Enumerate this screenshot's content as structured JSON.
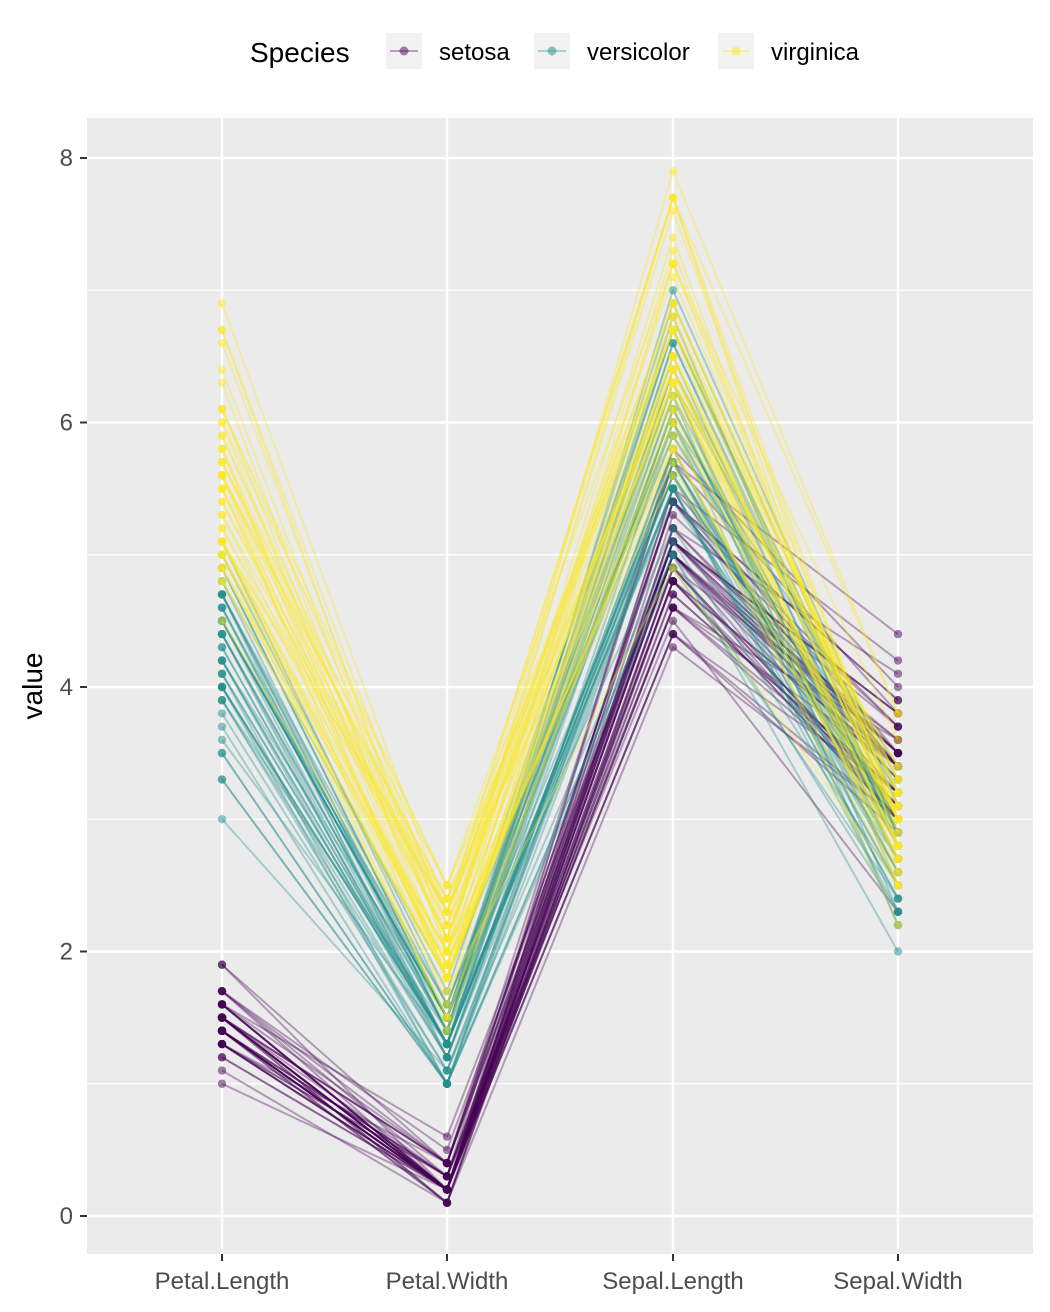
{
  "chart_data": {
    "type": "line",
    "subtype": "parallel-coordinates",
    "title": "",
    "xlabel": "",
    "ylabel": "value",
    "ylim": [
      -0.3,
      8.3
    ],
    "y_ticks": [
      0,
      2,
      4,
      6,
      8
    ],
    "y_minor_ticks": [
      1,
      3,
      5,
      7
    ],
    "grid": true,
    "legend": {
      "title": "Species",
      "position": "top"
    },
    "categories": [
      "Petal.Length",
      "Petal.Width",
      "Sepal.Length",
      "Sepal.Width"
    ],
    "colors": {
      "setosa": "#440154",
      "versicolor": "#21908C",
      "virginica": "#FDE725",
      "panel": "#EBEBEB",
      "grid": "#FFFFFF"
    },
    "series": [
      {
        "name": "setosa",
        "color": "#440154",
        "observations": [
          [
            1.4,
            0.2,
            5.1,
            3.5
          ],
          [
            1.4,
            0.2,
            4.9,
            3.0
          ],
          [
            1.3,
            0.2,
            4.7,
            3.2
          ],
          [
            1.5,
            0.2,
            4.6,
            3.1
          ],
          [
            1.4,
            0.2,
            5.0,
            3.6
          ],
          [
            1.7,
            0.4,
            5.4,
            3.9
          ],
          [
            1.4,
            0.3,
            4.6,
            3.4
          ],
          [
            1.5,
            0.2,
            5.0,
            3.4
          ],
          [
            1.4,
            0.2,
            4.4,
            2.9
          ],
          [
            1.5,
            0.1,
            4.9,
            3.1
          ],
          [
            1.5,
            0.2,
            5.4,
            3.7
          ],
          [
            1.6,
            0.2,
            4.8,
            3.4
          ],
          [
            1.4,
            0.1,
            4.8,
            3.0
          ],
          [
            1.1,
            0.1,
            4.3,
            3.0
          ],
          [
            1.2,
            0.2,
            5.8,
            4.0
          ],
          [
            1.5,
            0.4,
            5.7,
            4.4
          ],
          [
            1.3,
            0.4,
            5.4,
            3.9
          ],
          [
            1.4,
            0.3,
            5.1,
            3.5
          ],
          [
            1.7,
            0.3,
            5.7,
            3.8
          ],
          [
            1.5,
            0.3,
            5.1,
            3.8
          ],
          [
            1.7,
            0.2,
            5.4,
            3.4
          ],
          [
            1.5,
            0.4,
            5.1,
            3.7
          ],
          [
            1.0,
            0.2,
            4.6,
            3.6
          ],
          [
            1.7,
            0.5,
            5.1,
            3.3
          ],
          [
            1.9,
            0.2,
            4.8,
            3.4
          ],
          [
            1.6,
            0.2,
            5.0,
            3.0
          ],
          [
            1.6,
            0.4,
            5.0,
            3.4
          ],
          [
            1.5,
            0.2,
            5.2,
            3.5
          ],
          [
            1.4,
            0.2,
            5.2,
            3.4
          ],
          [
            1.6,
            0.2,
            4.7,
            3.2
          ],
          [
            1.6,
            0.2,
            4.8,
            3.1
          ],
          [
            1.5,
            0.4,
            5.4,
            3.4
          ],
          [
            1.5,
            0.1,
            5.2,
            4.1
          ],
          [
            1.4,
            0.2,
            5.5,
            4.2
          ],
          [
            1.5,
            0.2,
            4.9,
            3.1
          ],
          [
            1.2,
            0.2,
            5.0,
            3.2
          ],
          [
            1.3,
            0.2,
            5.5,
            3.5
          ],
          [
            1.4,
            0.1,
            4.9,
            3.6
          ],
          [
            1.3,
            0.2,
            4.4,
            3.0
          ],
          [
            1.5,
            0.2,
            5.1,
            3.4
          ],
          [
            1.3,
            0.3,
            5.0,
            3.5
          ],
          [
            1.3,
            0.3,
            4.5,
            2.3
          ],
          [
            1.3,
            0.2,
            4.4,
            3.2
          ],
          [
            1.6,
            0.6,
            5.0,
            3.5
          ],
          [
            1.9,
            0.4,
            5.1,
            3.8
          ],
          [
            1.4,
            0.3,
            4.8,
            3.0
          ],
          [
            1.6,
            0.2,
            5.1,
            3.8
          ],
          [
            1.4,
            0.2,
            4.6,
            3.2
          ],
          [
            1.5,
            0.2,
            5.3,
            3.7
          ],
          [
            1.4,
            0.2,
            5.0,
            3.3
          ]
        ]
      },
      {
        "name": "versicolor",
        "color": "#21908C",
        "observations": [
          [
            4.7,
            1.4,
            7.0,
            3.2
          ],
          [
            4.5,
            1.5,
            6.4,
            3.2
          ],
          [
            4.9,
            1.5,
            6.9,
            3.1
          ],
          [
            4.0,
            1.3,
            5.5,
            2.3
          ],
          [
            4.6,
            1.5,
            6.5,
            2.8
          ],
          [
            4.5,
            1.3,
            5.7,
            2.8
          ],
          [
            4.7,
            1.6,
            6.3,
            3.3
          ],
          [
            3.3,
            1.0,
            4.9,
            2.4
          ],
          [
            4.6,
            1.3,
            6.6,
            2.9
          ],
          [
            3.9,
            1.4,
            5.2,
            2.7
          ],
          [
            3.5,
            1.0,
            5.0,
            2.0
          ],
          [
            4.2,
            1.5,
            5.9,
            3.0
          ],
          [
            4.0,
            1.0,
            6.0,
            2.2
          ],
          [
            4.7,
            1.4,
            6.1,
            2.9
          ],
          [
            3.6,
            1.3,
            5.6,
            2.9
          ],
          [
            4.4,
            1.4,
            6.7,
            3.1
          ],
          [
            4.5,
            1.5,
            5.6,
            3.0
          ],
          [
            4.1,
            1.0,
            5.8,
            2.7
          ],
          [
            4.5,
            1.5,
            6.2,
            2.2
          ],
          [
            3.9,
            1.1,
            5.6,
            2.5
          ],
          [
            4.8,
            1.8,
            5.9,
            3.2
          ],
          [
            4.0,
            1.3,
            6.1,
            2.8
          ],
          [
            4.9,
            1.5,
            6.3,
            2.5
          ],
          [
            4.7,
            1.2,
            6.1,
            2.8
          ],
          [
            4.3,
            1.3,
            6.4,
            2.9
          ],
          [
            4.4,
            1.4,
            6.6,
            3.0
          ],
          [
            4.8,
            1.4,
            6.8,
            2.8
          ],
          [
            5.0,
            1.7,
            6.7,
            3.0
          ],
          [
            4.5,
            1.5,
            6.0,
            2.9
          ],
          [
            3.5,
            1.0,
            5.7,
            2.6
          ],
          [
            3.8,
            1.1,
            5.5,
            2.4
          ],
          [
            3.7,
            1.0,
            5.5,
            2.4
          ],
          [
            3.9,
            1.2,
            5.8,
            2.7
          ],
          [
            5.1,
            1.6,
            6.0,
            2.7
          ],
          [
            4.5,
            1.5,
            5.4,
            3.0
          ],
          [
            4.5,
            1.6,
            6.0,
            3.4
          ],
          [
            4.7,
            1.5,
            6.7,
            3.1
          ],
          [
            4.4,
            1.3,
            6.3,
            2.3
          ],
          [
            4.1,
            1.3,
            5.6,
            3.0
          ],
          [
            4.0,
            1.3,
            5.5,
            2.5
          ],
          [
            4.4,
            1.2,
            5.5,
            2.6
          ],
          [
            4.6,
            1.4,
            6.1,
            3.0
          ],
          [
            4.0,
            1.2,
            5.8,
            2.6
          ],
          [
            3.3,
            1.0,
            5.0,
            2.3
          ],
          [
            4.2,
            1.3,
            5.6,
            2.7
          ],
          [
            4.2,
            1.2,
            5.7,
            3.0
          ],
          [
            4.2,
            1.3,
            5.7,
            2.9
          ],
          [
            4.3,
            1.3,
            6.2,
            2.9
          ],
          [
            3.0,
            1.1,
            5.1,
            2.5
          ],
          [
            4.1,
            1.3,
            5.7,
            2.8
          ]
        ]
      },
      {
        "name": "virginica",
        "color": "#FDE725",
        "observations": [
          [
            6.0,
            2.5,
            6.3,
            3.3
          ],
          [
            5.1,
            1.9,
            5.8,
            2.7
          ],
          [
            5.9,
            2.1,
            7.1,
            3.0
          ],
          [
            5.6,
            1.8,
            6.3,
            2.9
          ],
          [
            5.8,
            2.2,
            6.5,
            3.0
          ],
          [
            6.6,
            2.1,
            7.6,
            3.0
          ],
          [
            4.5,
            1.7,
            4.9,
            2.5
          ],
          [
            6.3,
            1.8,
            7.3,
            2.9
          ],
          [
            5.8,
            1.8,
            6.7,
            2.5
          ],
          [
            6.1,
            2.5,
            7.2,
            3.6
          ],
          [
            5.1,
            2.0,
            6.5,
            3.2
          ],
          [
            5.3,
            1.9,
            6.4,
            2.7
          ],
          [
            5.5,
            2.1,
            6.8,
            3.0
          ],
          [
            5.0,
            2.0,
            5.7,
            2.5
          ],
          [
            5.1,
            2.4,
            5.8,
            2.8
          ],
          [
            5.3,
            2.3,
            6.4,
            3.2
          ],
          [
            5.5,
            1.8,
            6.5,
            3.0
          ],
          [
            6.7,
            2.2,
            7.7,
            3.8
          ],
          [
            6.9,
            2.3,
            7.7,
            2.6
          ],
          [
            5.0,
            1.5,
            6.0,
            2.2
          ],
          [
            5.7,
            2.3,
            6.9,
            3.2
          ],
          [
            4.9,
            2.0,
            5.6,
            2.8
          ],
          [
            6.7,
            2.0,
            7.7,
            2.8
          ],
          [
            4.9,
            1.8,
            6.3,
            2.7
          ],
          [
            5.7,
            2.1,
            6.7,
            3.3
          ],
          [
            6.0,
            1.8,
            7.2,
            3.2
          ],
          [
            4.8,
            1.8,
            6.2,
            2.8
          ],
          [
            4.9,
            1.8,
            6.1,
            3.0
          ],
          [
            5.6,
            2.1,
            6.4,
            2.8
          ],
          [
            5.8,
            1.6,
            7.2,
            3.0
          ],
          [
            6.1,
            1.9,
            7.4,
            2.8
          ],
          [
            6.4,
            2.0,
            7.9,
            3.8
          ],
          [
            5.6,
            2.2,
            6.4,
            2.8
          ],
          [
            5.1,
            1.5,
            6.3,
            2.8
          ],
          [
            5.6,
            1.4,
            6.1,
            2.6
          ],
          [
            6.1,
            2.3,
            7.7,
            3.0
          ],
          [
            5.6,
            2.4,
            6.3,
            3.4
          ],
          [
            5.5,
            1.8,
            6.4,
            3.1
          ],
          [
            4.8,
            1.8,
            6.0,
            3.0
          ],
          [
            5.4,
            2.1,
            6.9,
            3.1
          ],
          [
            5.6,
            2.4,
            6.7,
            3.1
          ],
          [
            5.1,
            2.3,
            6.9,
            3.1
          ],
          [
            5.1,
            1.9,
            5.8,
            2.7
          ],
          [
            5.9,
            2.3,
            6.8,
            3.2
          ],
          [
            5.7,
            2.5,
            6.7,
            3.3
          ],
          [
            5.2,
            2.3,
            6.7,
            3.0
          ],
          [
            5.0,
            1.9,
            6.3,
            2.5
          ],
          [
            5.2,
            2.0,
            6.5,
            3.0
          ],
          [
            5.4,
            2.3,
            6.2,
            3.4
          ],
          [
            5.1,
            1.8,
            5.9,
            3.0
          ]
        ]
      }
    ]
  }
}
